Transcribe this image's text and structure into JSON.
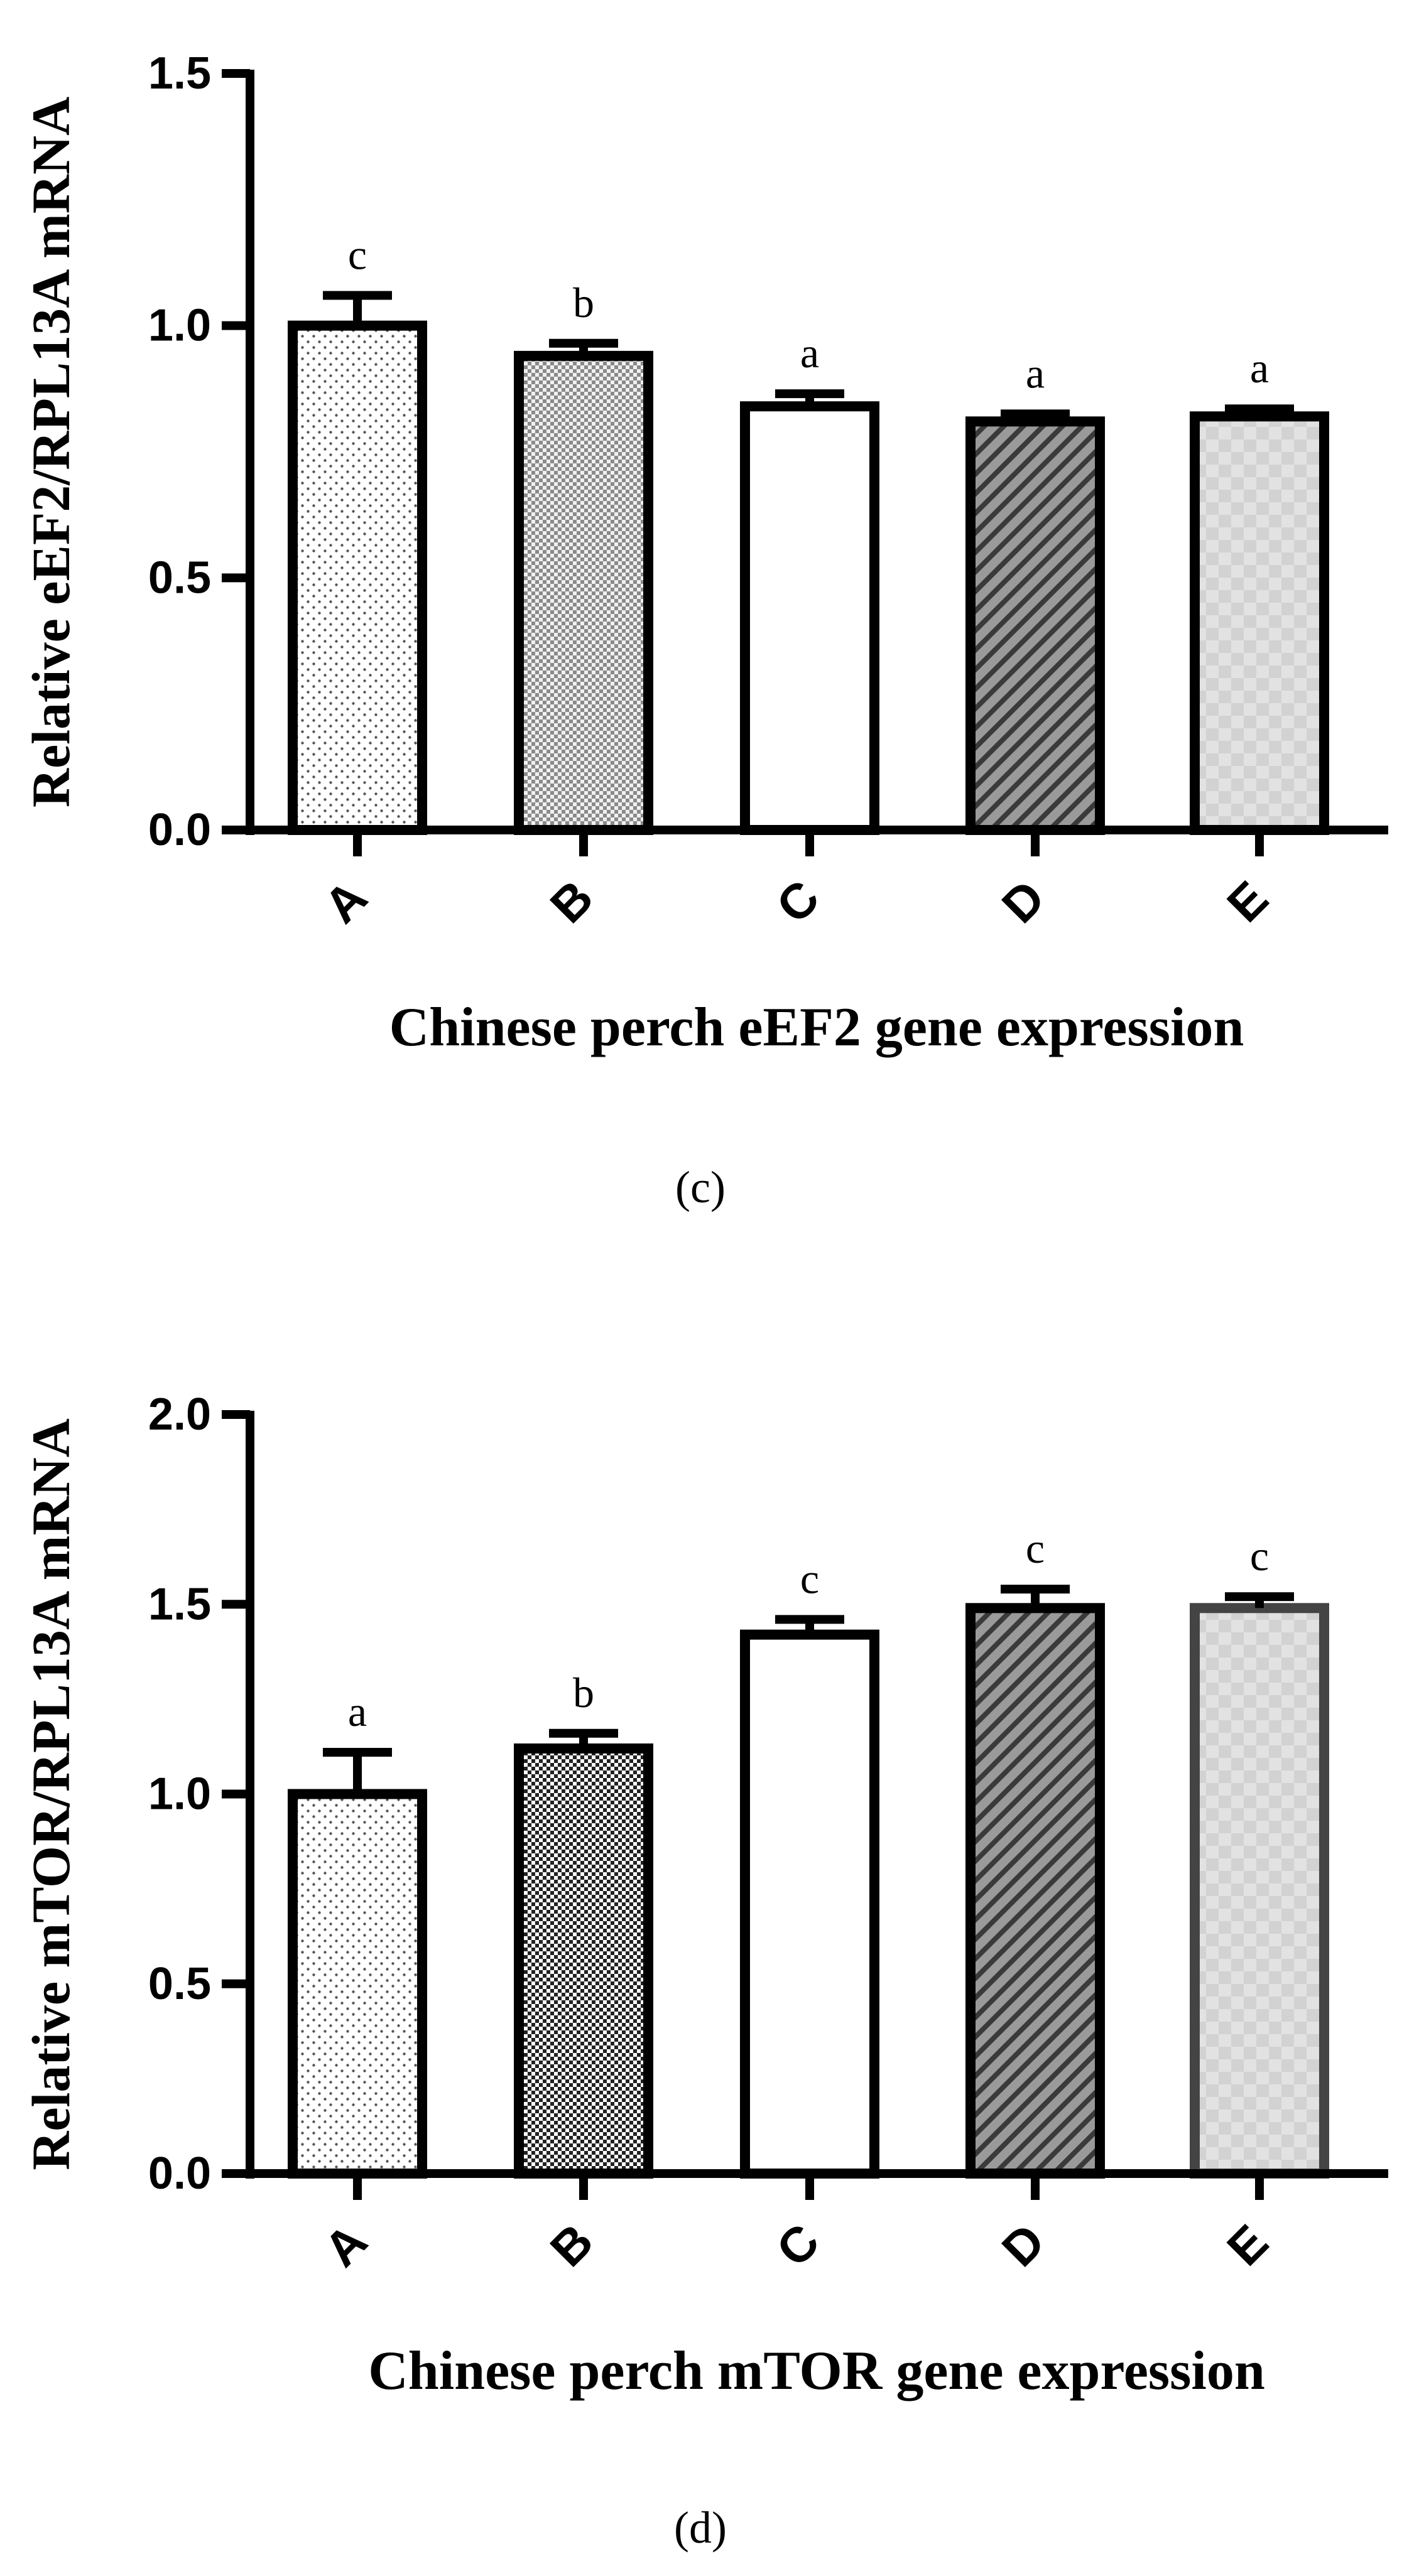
{
  "chart_data": [
    {
      "type": "bar",
      "panel_label": "(c)",
      "xlabel": "Chinese perch eEF2 gene expression",
      "ylabel": "Relative eEF2/RPL13A mRNA",
      "categories": [
        "A",
        "B",
        "C",
        "D",
        "E"
      ],
      "values": [
        1.0,
        0.94,
        0.84,
        0.81,
        0.82
      ],
      "errors": [
        0.06,
        0.025,
        0.025,
        0.015,
        0.015
      ],
      "significance": [
        "c",
        "b",
        "a",
        "a",
        "a"
      ],
      "ylim": [
        0,
        1.5
      ],
      "yticks": [
        0.0,
        0.5,
        1.0,
        1.5
      ],
      "ytick_labels": [
        "0.0",
        "0.5",
        "1.0",
        "1.5"
      ],
      "patterns": [
        "dots",
        "checker",
        "white",
        "diagonal",
        "light-checker"
      ],
      "grid": false
    },
    {
      "type": "bar",
      "panel_label": "(d)",
      "xlabel": "Chinese perch mTOR gene expression",
      "ylabel": "Relative mTOR/RPL13A mRNA",
      "categories": [
        "A",
        "B",
        "C",
        "D",
        "E"
      ],
      "values": [
        1.0,
        1.12,
        1.42,
        1.49,
        1.49
      ],
      "errors": [
        0.11,
        0.04,
        0.04,
        0.05,
        0.03
      ],
      "significance": [
        "a",
        "b",
        "c",
        "c",
        "c"
      ],
      "ylim": [
        0,
        2.0
      ],
      "yticks": [
        0.0,
        0.5,
        1.0,
        1.5,
        2.0
      ],
      "ytick_labels": [
        "0.0",
        "0.5",
        "1.0",
        "1.5",
        "2.0"
      ],
      "patterns": [
        "dots",
        "dense-checker",
        "white",
        "diagonal",
        "light-checker"
      ],
      "grid": false
    }
  ]
}
